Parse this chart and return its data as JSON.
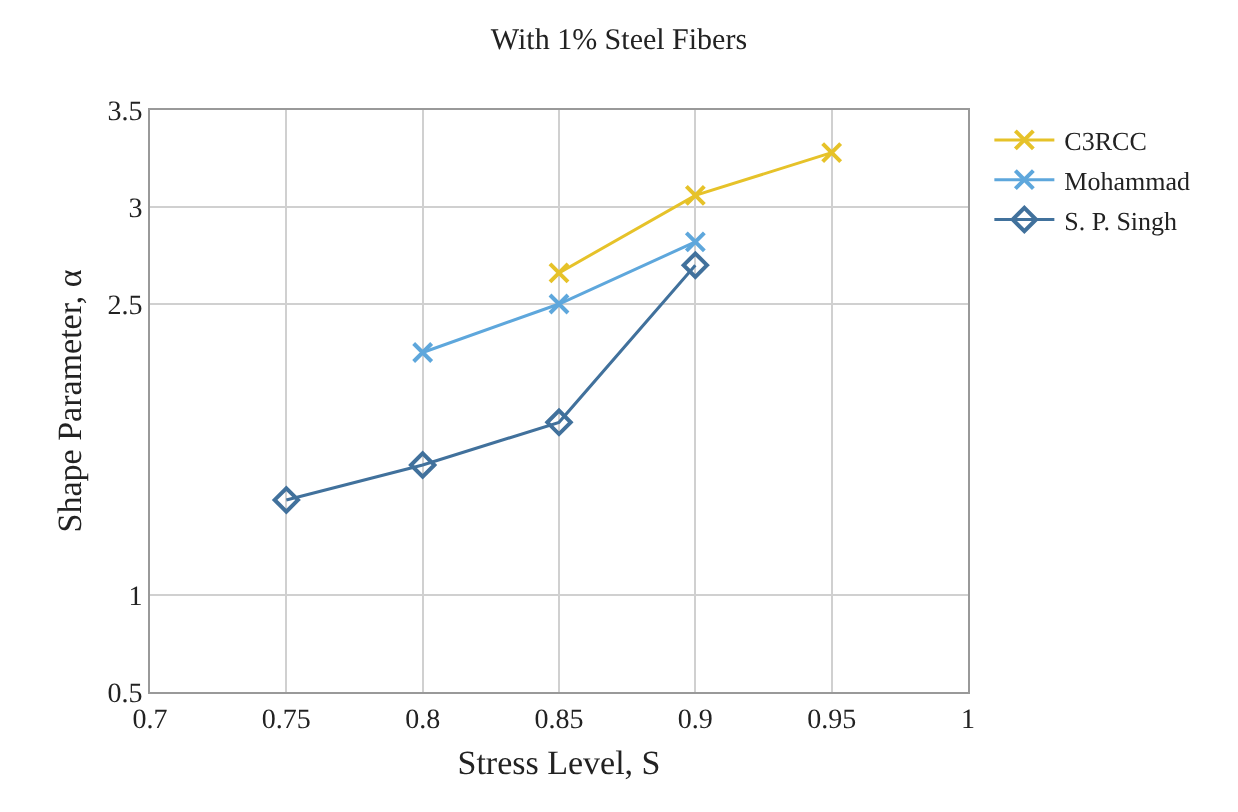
{
  "chart_data": {
    "type": "line",
    "title": "With 1% Steel Fibers",
    "xlabel": "Stress Level, S",
    "ylabel": "Shape Parameter, α",
    "x": [
      0.75,
      0.8,
      0.85,
      0.9,
      0.95
    ],
    "series": [
      {
        "name": "C3RCC",
        "color": "#e6c229",
        "marker": "cross",
        "values": [
          null,
          null,
          2.66,
          3.06,
          3.28
        ]
      },
      {
        "name": "Mohammad",
        "color": "#5ea7dc",
        "marker": "cross",
        "values": [
          null,
          2.25,
          2.5,
          2.82,
          null
        ]
      },
      {
        "name": "S. P. Singh",
        "color": "#41719c",
        "marker": "diamond",
        "values": [
          1.49,
          1.67,
          1.89,
          2.7,
          null
        ]
      }
    ],
    "xlim": [
      0.7,
      1
    ],
    "xticks": [
      0.7,
      0.75,
      0.8,
      0.85,
      0.9,
      0.95,
      1
    ],
    "ylim": [
      0.5,
      3.5
    ],
    "yticks": [
      0.5,
      1,
      2.5,
      3,
      3.5
    ],
    "grid": true,
    "legend": "right",
    "line_style": "solid"
  }
}
